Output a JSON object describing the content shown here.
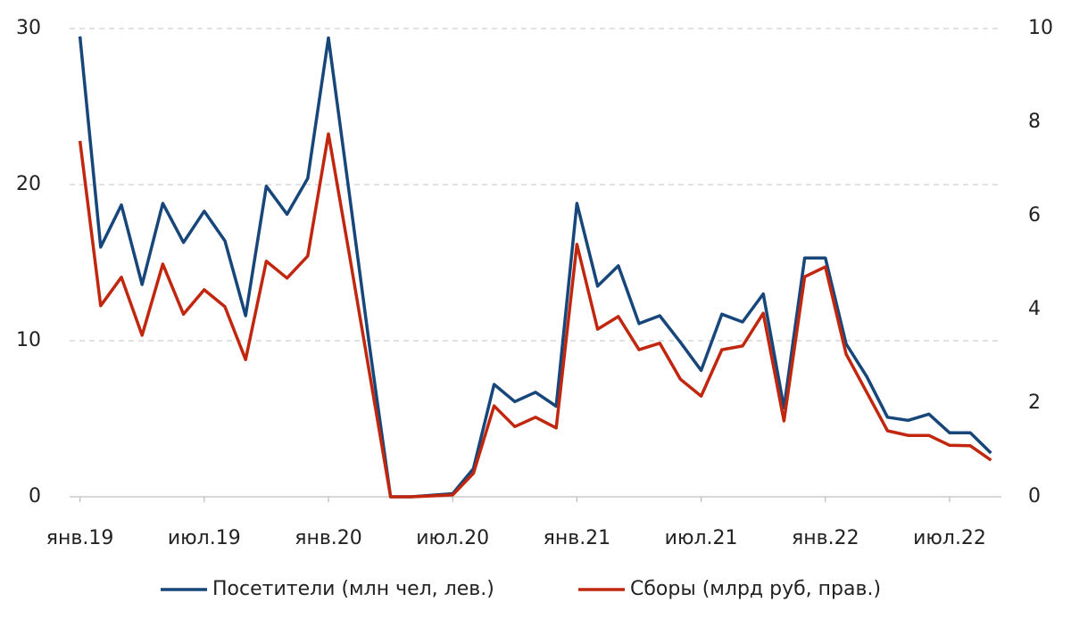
{
  "chart_data": {
    "type": "line",
    "categories": [
      "янв.19",
      null,
      null,
      null,
      null,
      null,
      "июл.19",
      null,
      null,
      null,
      null,
      null,
      "янв.20",
      null,
      null,
      null,
      null,
      null,
      "июл.20",
      null,
      null,
      null,
      null,
      null,
      "янв.21",
      null,
      null,
      null,
      null,
      null,
      "июл.21",
      null,
      null,
      null,
      null,
      null,
      "янв.22",
      null,
      null,
      null,
      null,
      null,
      "июл.22",
      null,
      null
    ],
    "series": [
      {
        "name": "Посетители (млн чел, лев.)",
        "color": "#17467a",
        "axis": "y",
        "values": [
          29.5,
          16.0,
          18.7,
          13.6,
          18.8,
          16.3,
          18.3,
          16.4,
          11.6,
          19.9,
          18.1,
          20.4,
          29.4,
          19.5,
          9.5,
          0,
          0,
          0.1,
          0.2,
          1.8,
          7.2,
          6.1,
          6.7,
          5.8,
          18.8,
          13.5,
          14.8,
          11.1,
          11.6,
          9.9,
          8.1,
          11.7,
          11.2,
          13.0,
          5.7,
          15.3,
          15.3,
          9.8,
          7.7,
          5.1,
          4.9,
          5.3,
          4.1,
          4.1,
          2.8
        ]
      },
      {
        "name": "Сборы (млрд руб, прав.)",
        "color": "#c0270e",
        "axis": "y2",
        "values": [
          7.6,
          4.08,
          4.69,
          3.45,
          4.97,
          3.9,
          4.42,
          4.06,
          2.93,
          5.03,
          4.67,
          5.14,
          7.75,
          5.2,
          2.6,
          0,
          0,
          0.02,
          0.04,
          0.5,
          1.94,
          1.5,
          1.7,
          1.47,
          5.39,
          3.58,
          3.85,
          3.14,
          3.28,
          2.51,
          2.15,
          3.14,
          3.22,
          3.92,
          1.62,
          4.7,
          4.91,
          3.05,
          2.23,
          1.41,
          1.31,
          1.31,
          1.1,
          1.09,
          0.78
        ]
      }
    ],
    "ylim": [
      0,
      30
    ],
    "yticks": [
      0,
      10,
      20,
      30
    ],
    "y2lim": [
      0,
      10
    ],
    "y2ticks": [
      0,
      2,
      4,
      6,
      8,
      10
    ],
    "grid": true,
    "legend": "bottom"
  }
}
